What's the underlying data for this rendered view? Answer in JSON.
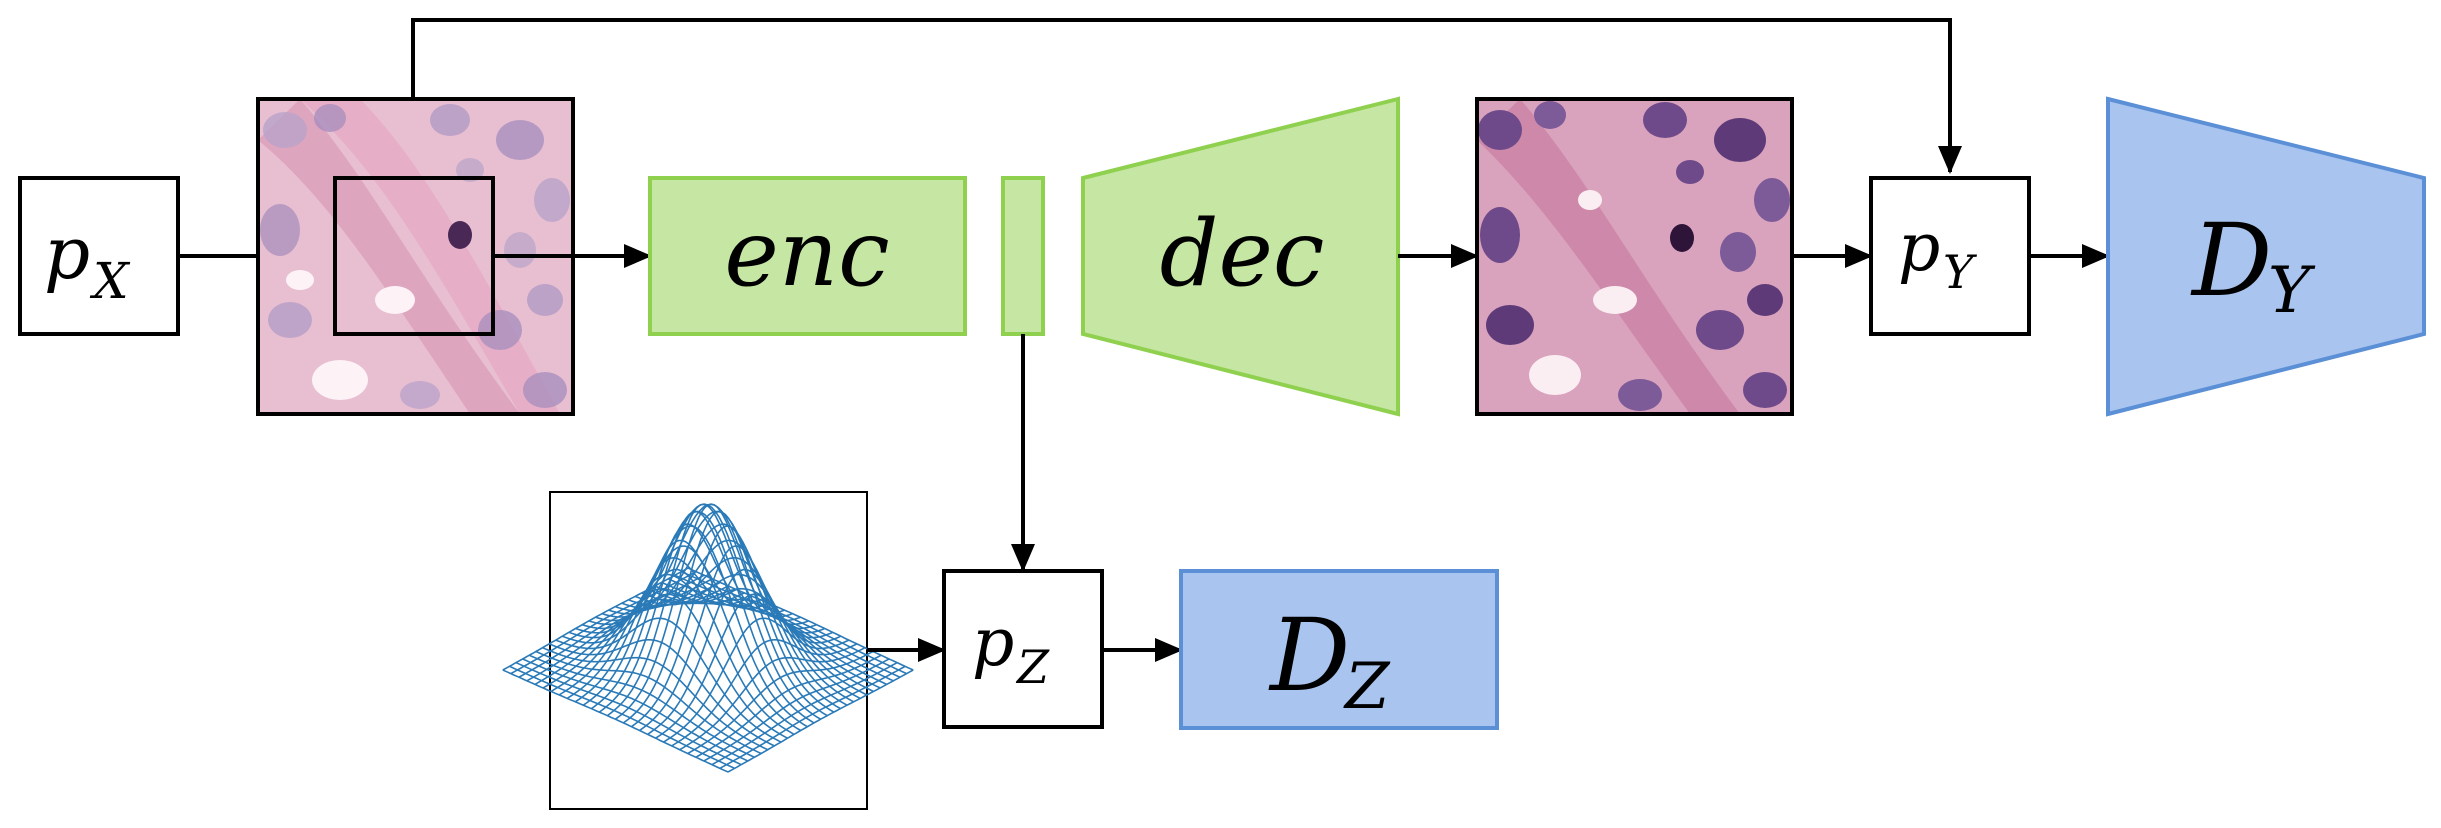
{
  "labels": {
    "px_main": "p",
    "px_sub": "X",
    "enc": "enc",
    "dec": "dec",
    "py_main": "p",
    "py_sub": "Y",
    "dy_main": "D",
    "dy_sub": "Y",
    "pz_main": "p",
    "pz_sub": "Z",
    "dz_main": "D",
    "dz_sub": "Z"
  },
  "colors": {
    "green_fill": "#c6e6a4",
    "green_stroke": "#8fd14f",
    "blue_fill": "#a9c4ee",
    "blue_stroke": "#5b8fd6",
    "mesh": "#2a7ab8",
    "tissue_bg": "#e4b4c8",
    "nucleus": "#8e6fa6"
  }
}
